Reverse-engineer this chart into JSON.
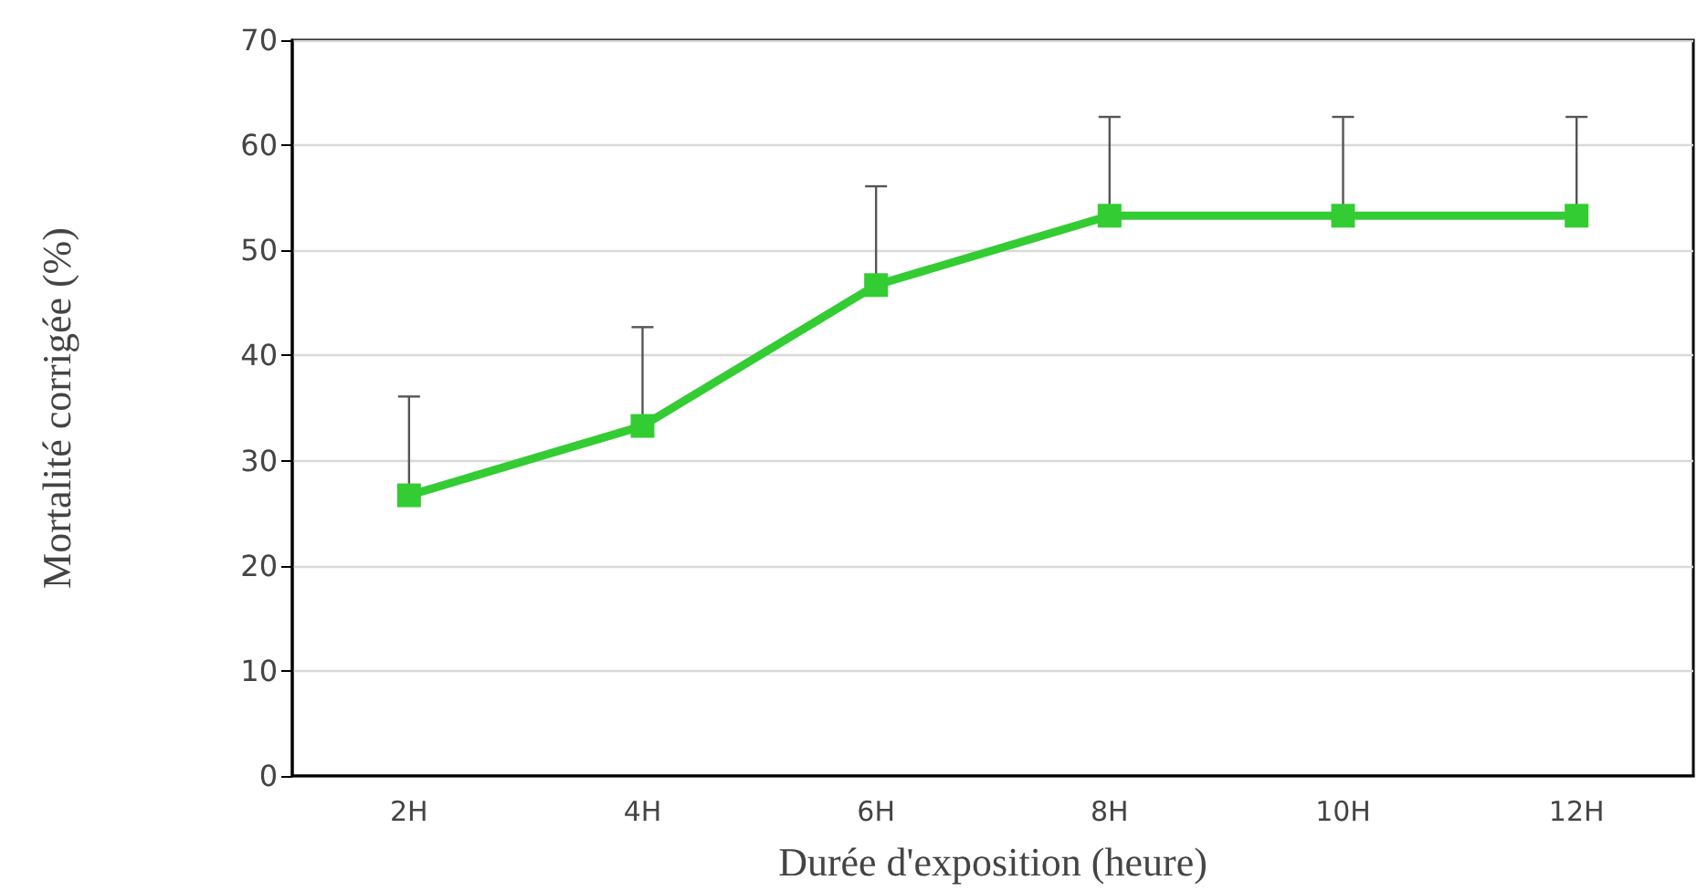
{
  "chart_data": {
    "type": "line",
    "xlabel": "Durée d'exposition (heure)",
    "ylabel": "Mortalité corrigée (%)",
    "categories": [
      "2H",
      "4H",
      "6H",
      "8H",
      "10H",
      "12H"
    ],
    "series": [
      {
        "color": "#33cc33",
        "values": [
          26.7,
          33.3,
          46.7,
          53.3,
          53.3,
          53.3
        ],
        "errors": [
          [
            26.7,
            36.1
          ],
          [
            33.3,
            42.7
          ],
          [
            46.7,
            56.1
          ],
          [
            53.3,
            62.7
          ],
          [
            53.3,
            62.7
          ],
          [
            53.3,
            62.7
          ]
        ]
      }
    ],
    "ylim": [
      0,
      70
    ],
    "yticks": [
      0,
      10,
      20,
      30,
      40,
      50,
      60,
      70
    ],
    "grid": "y",
    "marker": "square",
    "line_style": "solid"
  }
}
